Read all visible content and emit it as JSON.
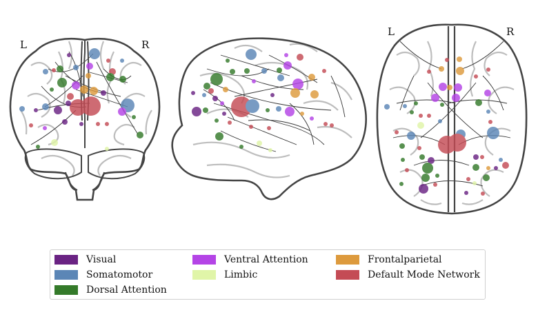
{
  "views": {
    "coronal": {
      "left_label": "L",
      "right_label": "R"
    },
    "axial": {
      "left_label": "L",
      "right_label": "R"
    }
  },
  "networks": [
    {
      "name": "Visual",
      "color": "#6a2383"
    },
    {
      "name": "Somatomotor",
      "color": "#5b86b6"
    },
    {
      "name": "Dorsal Attention",
      "color": "#347a2a"
    },
    {
      "name": "Ventral Attention",
      "color": "#b444e6"
    },
    {
      "name": "Limbic",
      "color": "#e0f5a8"
    },
    {
      "name": "Frontalparietal",
      "color": "#dd9a3d"
    },
    {
      "name": "Default Mode Network",
      "color": "#c44b55"
    }
  ],
  "legend": {
    "items": [
      {
        "label": "Visual",
        "color": "#6a2383"
      },
      {
        "label": "Ventral Attention",
        "color": "#b444e6"
      },
      {
        "label": "Frontalparietal",
        "color": "#dd9a3d"
      },
      {
        "label": "Somatomotor",
        "color": "#5b86b6"
      },
      {
        "label": "Limbic",
        "color": "#e0f5a8"
      },
      {
        "label": "Default Mode Network",
        "color": "#c44b55"
      },
      {
        "label": "Dorsal Attention",
        "color": "#347a2a"
      }
    ]
  }
}
